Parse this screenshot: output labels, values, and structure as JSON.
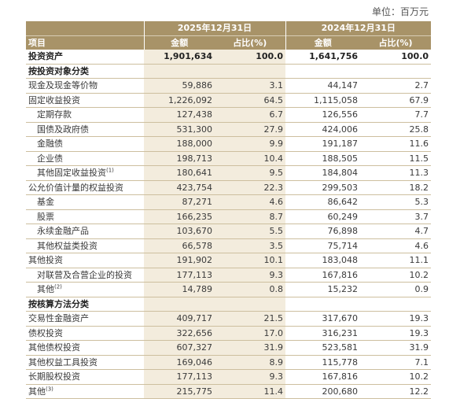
{
  "unit_label": "单位：百万元",
  "header": {
    "item_label": "项目",
    "period1": "2025年12月31日",
    "period2": "2024年12月31日",
    "amount_label": "金额",
    "pct_label": "占比(%)"
  },
  "rows": [
    {
      "type": "total",
      "name": "投资资产",
      "a1": "1,901,634",
      "p1": "100.0",
      "a2": "1,641,756",
      "p2": "100.0"
    },
    {
      "type": "section",
      "name": "按投资对象分类"
    },
    {
      "type": "item",
      "name": "现金及现金等价物",
      "a1": "59,886",
      "p1": "3.1",
      "a2": "44,147",
      "p2": "2.7"
    },
    {
      "type": "item",
      "name": "固定收益投资",
      "a1": "1,226,092",
      "p1": "64.5",
      "a2": "1,115,058",
      "p2": "67.9"
    },
    {
      "type": "sub",
      "name": "定期存款",
      "a1": "127,438",
      "p1": "6.7",
      "a2": "126,556",
      "p2": "7.7"
    },
    {
      "type": "sub",
      "name": "国债及政府债",
      "a1": "531,300",
      "p1": "27.9",
      "a2": "424,006",
      "p2": "25.8"
    },
    {
      "type": "sub",
      "name": "金融债",
      "a1": "188,000",
      "p1": "9.9",
      "a2": "191,187",
      "p2": "11.6"
    },
    {
      "type": "sub",
      "name": "企业债",
      "a1": "198,713",
      "p1": "10.4",
      "a2": "188,505",
      "p2": "11.5"
    },
    {
      "type": "sub",
      "name": "其他固定收益投资",
      "note": "(1)",
      "a1": "180,641",
      "p1": "9.5",
      "a2": "184,804",
      "p2": "11.3"
    },
    {
      "type": "item",
      "name": "公允价值计量的权益投资",
      "a1": "423,754",
      "p1": "22.3",
      "a2": "299,503",
      "p2": "18.2"
    },
    {
      "type": "sub",
      "name": "基金",
      "a1": "87,271",
      "p1": "4.6",
      "a2": "86,642",
      "p2": "5.3"
    },
    {
      "type": "sub",
      "name": "股票",
      "a1": "166,235",
      "p1": "8.7",
      "a2": "60,249",
      "p2": "3.7"
    },
    {
      "type": "sub",
      "name": "永续金融产品",
      "a1": "103,670",
      "p1": "5.5",
      "a2": "76,898",
      "p2": "4.7"
    },
    {
      "type": "sub",
      "name": "其他权益类投资",
      "a1": "66,578",
      "p1": "3.5",
      "a2": "75,714",
      "p2": "4.6"
    },
    {
      "type": "item",
      "name": "其他投资",
      "a1": "191,902",
      "p1": "10.1",
      "a2": "183,048",
      "p2": "11.1"
    },
    {
      "type": "sub",
      "name": "对联营及合营企业的投资",
      "a1": "177,113",
      "p1": "9.3",
      "a2": "167,816",
      "p2": "10.2"
    },
    {
      "type": "sub",
      "name": "其他",
      "note": "(2)",
      "a1": "14,789",
      "p1": "0.8",
      "a2": "15,232",
      "p2": "0.9"
    },
    {
      "type": "section",
      "name": "按核算方法分类"
    },
    {
      "type": "item",
      "name": "交易性金融资产",
      "a1": "409,717",
      "p1": "21.5",
      "a2": "317,670",
      "p2": "19.3"
    },
    {
      "type": "item",
      "name": "债权投资",
      "a1": "322,656",
      "p1": "17.0",
      "a2": "316,231",
      "p2": "19.3"
    },
    {
      "type": "item",
      "name": "其他债权投资",
      "a1": "607,327",
      "p1": "31.9",
      "a2": "523,581",
      "p2": "31.9"
    },
    {
      "type": "item",
      "name": "其他权益工具投资",
      "a1": "169,046",
      "p1": "8.9",
      "a2": "115,778",
      "p2": "7.1"
    },
    {
      "type": "item",
      "name": "长期股权投资",
      "a1": "177,113",
      "p1": "9.3",
      "a2": "167,816",
      "p2": "10.2"
    },
    {
      "type": "item",
      "name": "其他",
      "note": "(3)",
      "a1": "215,775",
      "p1": "11.4",
      "a2": "200,680",
      "p2": "12.2"
    }
  ]
}
